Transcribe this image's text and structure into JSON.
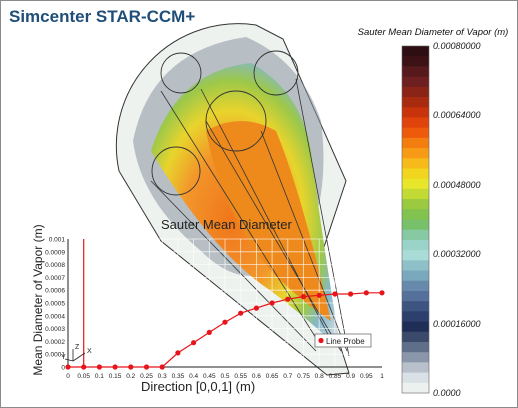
{
  "app": {
    "title": "Simcenter STAR-CCM+"
  },
  "colorbar": {
    "title": "Sauter Mean Diameter of Vapor (m)",
    "ticks": [
      "0.00080000",
      "0.00064000",
      "0.00048000",
      "0.00032000",
      "0.00016000",
      "0.0000"
    ],
    "tick_values": [
      0.0008,
      0.00064,
      0.00048,
      0.00032,
      0.00016,
      0.0
    ],
    "colors": [
      "#2d0e12",
      "#3d1216",
      "#561a1c",
      "#6e1f1f",
      "#8a2416",
      "#a82b10",
      "#c8330c",
      "#e0440c",
      "#ee5a0c",
      "#f47d10",
      "#f79a16",
      "#f6bb1a",
      "#f2d51f",
      "#e8e62a",
      "#c2da33",
      "#9bc93f",
      "#82c24e",
      "#78c06a",
      "#86c9a2",
      "#9ad4c8",
      "#a9dcd6",
      "#8ec0c8",
      "#7aa8bd",
      "#6789ab",
      "#55709a",
      "#3d5481",
      "#2d3f6c",
      "#1f2e57",
      "#3b4a6a",
      "#5f6f89",
      "#8a97aa",
      "#b7c0cb",
      "#d9e0e6",
      "#ecf1f0"
    ]
  },
  "chart_data": {
    "type": "line",
    "title": "Sauter Mean Diameter",
    "xlabel": "Direction [0,0,1] (m)",
    "ylabel": "Mean Diameter of Vapor (m)",
    "xlim": [
      0,
      1
    ],
    "ylim": [
      0,
      0.001
    ],
    "x_ticks": [
      "0",
      "0.05",
      "0.1",
      "0.15",
      "0.2",
      "0.25",
      "0.3",
      "0.35",
      "0.4",
      "0.45",
      "0.5",
      "0.55",
      "0.6",
      "0.65",
      "0.7",
      "0.75",
      "0.8",
      "0.85",
      "0.9",
      "0.95",
      "1"
    ],
    "y_ticks": [
      "0",
      "0.0001",
      "0.0002",
      "0.0003",
      "0.0004",
      "0.0005",
      "0.0006",
      "0.0007",
      "0.0008",
      "0.0009",
      "0.001"
    ],
    "grid": true,
    "legend": "bottom-right",
    "series": [
      {
        "name": "Line Probe",
        "color": "#e8141b",
        "x": [
          0.0,
          0.05,
          0.1,
          0.15,
          0.2,
          0.25,
          0.3,
          0.35,
          0.4,
          0.45,
          0.5,
          0.55,
          0.6,
          0.65,
          0.7,
          0.75,
          0.8,
          0.85,
          0.9,
          0.95,
          1.0
        ],
        "y": [
          0.0,
          0.0,
          0.0,
          0.0,
          0.0,
          0.0,
          0.0,
          0.00011,
          0.00019,
          0.00027,
          0.00035,
          0.00042,
          0.00046,
          0.0005,
          0.00053,
          0.00055,
          0.00056,
          0.00057,
          0.00057,
          0.00058,
          0.00058
        ]
      }
    ],
    "triad": {
      "labels": [
        "X",
        "Y",
        "Z"
      ]
    }
  }
}
